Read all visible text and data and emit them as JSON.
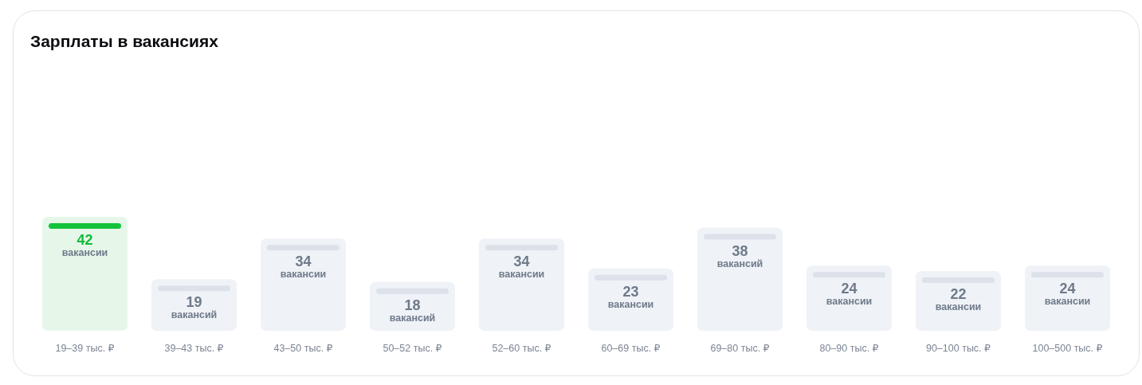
{
  "chart_data": {
    "type": "bar",
    "title": "Зарплаты в вакансиях",
    "categories": [
      "19–39 тыс. ₽",
      "39–43 тыс. ₽",
      "43–50 тыс. ₽",
      "50–52 тыс. ₽",
      "52–60 тыс. ₽",
      "60–69 тыс. ₽",
      "69–80 тыс. ₽",
      "80–90 тыс. ₽",
      "90–100 тыс. ₽",
      "100–500 тыс. ₽"
    ],
    "values": [
      42,
      19,
      34,
      18,
      34,
      23,
      38,
      24,
      22,
      24
    ],
    "value_labels": [
      "42 вакансии",
      "19 вакансий",
      "34 вакансии",
      "18 вакансий",
      "34 вакансии",
      "23 вакансии",
      "38 вакансий",
      "24 вакансии",
      "22 вакансии",
      "24 вакансии"
    ],
    "colors": [
      "#e6f7ea",
      "#eff2f7",
      "#eff2f7",
      "#eff2f7",
      "#eff2f7",
      "#eff2f7",
      "#eff2f7",
      "#eff2f7",
      "#eff2f7",
      "#eff2f7"
    ],
    "grid": false,
    "legend": false
  }
}
